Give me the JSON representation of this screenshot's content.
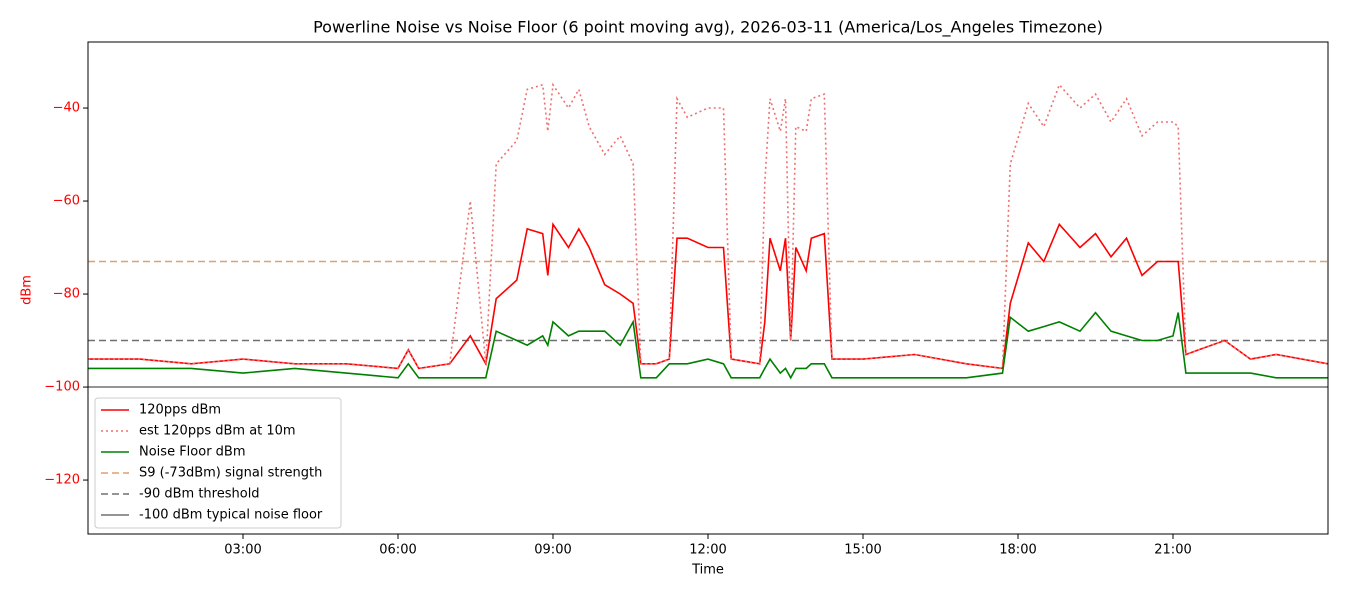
{
  "chart_data": {
    "type": "line",
    "title": "Powerline Noise vs Noise Floor (6 point moving avg), 2026-03-11 (America/Los_Angeles Timezone)",
    "xlabel": "Time",
    "ylabel": "dBm",
    "x": [
      0,
      1,
      2,
      3,
      4,
      5,
      6,
      6.2,
      6.4,
      7,
      7.4,
      7.7,
      7.9,
      8.3,
      8.5,
      8.8,
      8.9,
      9.0,
      9.3,
      9.5,
      9.7,
      10.0,
      10.3,
      10.55,
      10.7,
      11.0,
      11.25,
      11.4,
      11.6,
      12.0,
      12.3,
      12.45,
      13.0,
      13.1,
      13.2,
      13.4,
      13.5,
      13.6,
      13.7,
      13.9,
      14.0,
      14.25,
      14.4,
      15,
      16,
      17,
      17.7,
      17.85,
      18.2,
      18.5,
      18.8,
      19.2,
      19.5,
      19.8,
      20.1,
      20.4,
      20.7,
      21.0,
      21.1,
      21.25,
      21.5,
      22.0,
      22.5,
      23.0,
      24
    ],
    "series": [
      {
        "name": "120pps dBm",
        "color": "#ff0000",
        "style": "solid",
        "values": [
          -94,
          -94,
          -95,
          -94,
          -95,
          -95,
          -96,
          -92,
          -96,
          -95,
          -89,
          -95,
          -81,
          -77,
          -66,
          -67,
          -76,
          -65,
          -70,
          -66,
          -70,
          -78,
          -80,
          -82,
          -95,
          -95,
          -94,
          -68,
          -68,
          -70,
          -70,
          -94,
          -95,
          -86,
          -68,
          -75,
          -68,
          -90,
          -70,
          -75,
          -68,
          -67,
          -94,
          -94,
          -93,
          -95,
          -96,
          -82,
          -69,
          -73,
          -65,
          -70,
          -67,
          -72,
          -68,
          -76,
          -73,
          -73,
          -73,
          -93,
          -92,
          -90,
          -94,
          -93,
          -95
        ]
      },
      {
        "name": "est 120pps dBm at 10m",
        "color": "#f07070",
        "style": "dotted",
        "values": [
          -94,
          -94,
          -95,
          -94,
          -95,
          -95,
          -96,
          -92,
          -96,
          -95,
          -60,
          -95,
          -52,
          -47,
          -36,
          -35,
          -45,
          -35,
          -40,
          -36,
          -44,
          -50,
          -46,
          -52,
          -95,
          -95,
          -94,
          -38,
          -42,
          -40,
          -40,
          -94,
          -95,
          -56,
          -38,
          -45,
          -38,
          -90,
          -44,
          -45,
          -38,
          -37,
          -94,
          -94,
          -93,
          -95,
          -96,
          -52,
          -39,
          -44,
          -35,
          -40,
          -37,
          -43,
          -38,
          -46,
          -43,
          -43,
          -44,
          -93,
          -92,
          -90,
          -94,
          -93,
          -95
        ]
      },
      {
        "name": "Noise Floor dBm",
        "color": "#008000",
        "style": "solid",
        "values": [
          -96,
          -96,
          -96,
          -97,
          -96,
          -97,
          -98,
          -95,
          -98,
          -98,
          -98,
          -98,
          -88,
          -90,
          -91,
          -89,
          -91,
          -86,
          -89,
          -88,
          -88,
          -88,
          -91,
          -86,
          -98,
          -98,
          -95,
          -95,
          -95,
          -94,
          -95,
          -98,
          -98,
          -96,
          -94,
          -97,
          -96,
          -98,
          -96,
          -96,
          -95,
          -95,
          -98,
          -98,
          -98,
          -98,
          -97,
          -85,
          -88,
          -87,
          -86,
          -88,
          -84,
          -88,
          -89,
          -90,
          -90,
          -89,
          -84,
          -97,
          -97,
          -97,
          -97,
          -98,
          -98
        ]
      }
    ],
    "reference_lines": [
      {
        "name": "S9 (-73dBm) signal strength",
        "value": -73,
        "color": "#e0a070",
        "style": "dashed"
      },
      {
        "name": "-90 dBm threshold",
        "value": -90,
        "color": "#707070",
        "style": "dashed"
      },
      {
        "name": "-100 dBm typical noise floor",
        "value": -100,
        "color": "#707070",
        "style": "solid"
      }
    ],
    "xlim": [
      0,
      24
    ],
    "xticks": [
      {
        "value": 3,
        "label": "03:00"
      },
      {
        "value": 6,
        "label": "06:00"
      },
      {
        "value": 9,
        "label": "09:00"
      },
      {
        "value": 12,
        "label": "12:00"
      },
      {
        "value": 15,
        "label": "15:00"
      },
      {
        "value": 18,
        "label": "18:00"
      },
      {
        "value": 21,
        "label": "21:00"
      }
    ],
    "ylim": [
      -131.6,
      -25.8
    ],
    "yticks": [
      {
        "value": -120,
        "label": "−120"
      },
      {
        "value": -100,
        "label": "−100"
      },
      {
        "value": -80,
        "label": "−80"
      },
      {
        "value": -60,
        "label": "−60"
      },
      {
        "value": -40,
        "label": "−40"
      }
    ],
    "axis_color": "#ff0000",
    "legend": "lower left"
  }
}
